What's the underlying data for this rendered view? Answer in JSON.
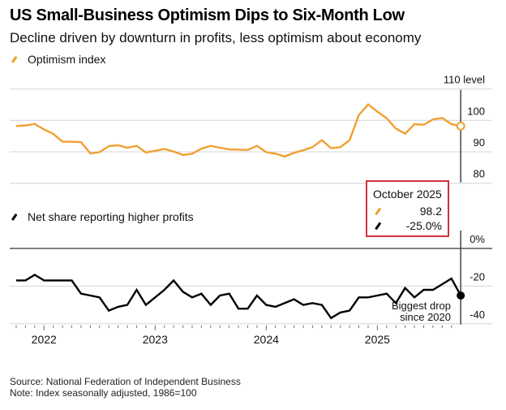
{
  "title": "US Small-Business Optimism Dips to Six-Month Low",
  "subtitle": "Decline driven by downturn in profits, less optimism about economy",
  "colors": {
    "optimism": "#f0a030",
    "profits": "#000000",
    "callout_border": "#d0303a",
    "grid": "#d4d4d4",
    "zero_line": "#555555"
  },
  "legend": {
    "optimism": "Optimism index",
    "profits": "Net share reporting higher profits"
  },
  "callout": {
    "period": "October 2025",
    "optimism_value": "98.2",
    "profits_value": "-25.0%"
  },
  "annotation": {
    "line1": "Biggest drop",
    "line2": "since 2020"
  },
  "footer": {
    "source": "Source: National Federation of Independent Business",
    "note": "Note: Index seasonally adjusted, 1986=100"
  },
  "chart_data": [
    {
      "type": "line",
      "title": "Optimism index",
      "ylabel": "",
      "ylim": [
        80,
        110
      ],
      "y_ticks": [
        "110 level",
        "100",
        "90",
        "80"
      ],
      "y_tick_values": [
        110,
        100,
        90,
        80
      ],
      "x_start": "2021-10",
      "x_end": "2025-10",
      "x_tick_labels": [
        "2022",
        "2023",
        "2024",
        "2025"
      ],
      "grid": true,
      "series": [
        {
          "name": "Optimism index",
          "values": [
            98.2,
            98.4,
            98.9,
            97.1,
            95.7,
            93.2,
            93.2,
            93.1,
            89.5,
            89.9,
            91.8,
            92.1,
            91.3,
            91.9,
            89.8,
            90.3,
            90.9,
            90.1,
            89.0,
            89.4,
            91.0,
            91.9,
            91.3,
            90.8,
            90.7,
            90.6,
            91.9,
            89.9,
            89.4,
            88.5,
            89.7,
            90.5,
            91.5,
            93.7,
            91.2,
            91.5,
            93.7,
            101.7,
            105.1,
            102.8,
            100.7,
            97.4,
            95.8,
            98.8,
            98.6,
            100.3,
            100.8,
            98.8,
            98.2
          ]
        }
      ]
    },
    {
      "type": "line",
      "title": "Net share reporting higher profits",
      "ylabel": "",
      "ylim": [
        -42,
        0
      ],
      "y_ticks": [
        "0%",
        "-20",
        "-40"
      ],
      "y_tick_values": [
        0,
        -20,
        -40
      ],
      "x_start": "2021-10",
      "x_end": "2025-10",
      "x_tick_labels": [
        "2022",
        "2023",
        "2024",
        "2025"
      ],
      "grid": true,
      "series": [
        {
          "name": "Net share reporting higher profits",
          "values": [
            -17,
            -17,
            -14,
            -17,
            -17,
            -17,
            -17,
            -24,
            -25,
            -26,
            -33,
            -31,
            -30,
            -22,
            -30,
            -26,
            -22,
            -17,
            -23,
            -26,
            -24,
            -30,
            -25,
            -24,
            -32,
            -32,
            -25,
            -30,
            -31,
            -29,
            -27,
            -30,
            -29,
            -30,
            -37,
            -34,
            -33,
            -26,
            -26,
            -25,
            -24,
            -29,
            -21,
            -26,
            -22,
            -22,
            -19,
            -16,
            -25
          ]
        }
      ]
    }
  ]
}
